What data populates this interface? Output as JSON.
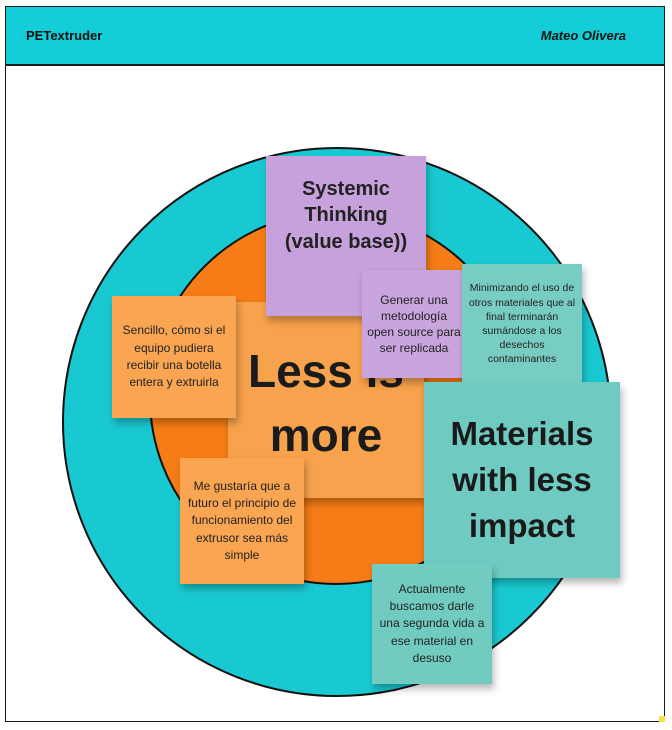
{
  "header": {
    "project": "PETextruder",
    "author": "Mateo Olivera"
  },
  "diagram": {
    "center_note": "Less is more",
    "systemic_note": "Systemic Thinking (value base))",
    "materials_note": "Materials with less impact"
  },
  "sticky_notes": {
    "sencillo": "Sencillo, cómo si el equipo pudiera recibir una botella entera y extruirla",
    "generar": "Generar una metodología open source para ser replicada",
    "minimizando": "Minimizando el uso de otros materiales que al final terminarán sumándose a los desechos contaminantes",
    "megustaria": "Me gustaría que a futuro el principio de funcionamiento del extrusor sea más simple",
    "actualmente": "Actualmente buscamos darle una segunda vida a ese material en desuso"
  },
  "colors": {
    "header": "#13cdd8",
    "outer_ring": "#19c9d1",
    "inner_circle": "#f57c16",
    "orange_note": "#f9a552",
    "purple_note": "#c7a1db",
    "teal_note": "#6fcbc1"
  }
}
